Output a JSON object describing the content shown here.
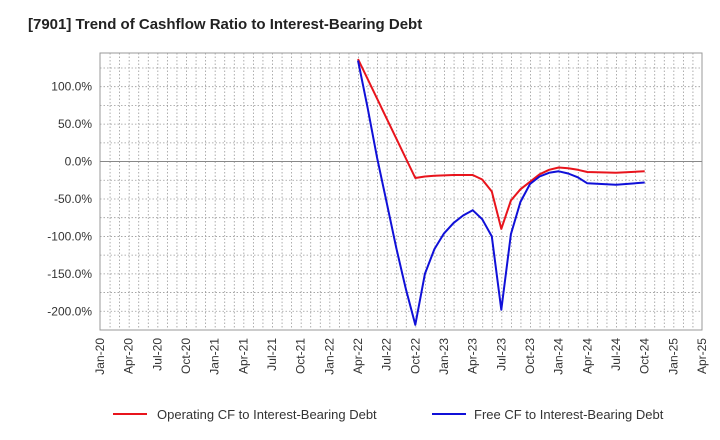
{
  "title": "[7901]  Trend of Cashflow Ratio to Interest-Bearing Debt",
  "chart_data": {
    "type": "line",
    "title": "[7901]  Trend of Cashflow Ratio to Interest-Bearing Debt",
    "xlabel": "",
    "ylabel": "",
    "x_tick_labels": [
      "Jan-20",
      "Apr-20",
      "Jul-20",
      "Oct-20",
      "Jan-21",
      "Apr-21",
      "Jul-21",
      "Oct-21",
      "Jan-22",
      "Apr-22",
      "Jul-22",
      "Oct-22",
      "Jan-23",
      "Apr-23",
      "Jul-23",
      "Oct-23",
      "Jan-24",
      "Apr-24",
      "Jul-24",
      "Oct-24",
      "Jan-25",
      "Apr-25"
    ],
    "xlim": [
      "2020-01",
      "2025-04"
    ],
    "y_tick_values": [
      100,
      50,
      0,
      -50,
      -100,
      -150,
      -200
    ],
    "y_tick_labels": [
      "100.0%",
      "50.0%",
      "0.0%",
      "-50.0%",
      "-100.0%",
      "-150.0%",
      "-200.0%"
    ],
    "ylim": [
      -225,
      145
    ],
    "grid": true,
    "legend_position": "bottom",
    "series": [
      {
        "name": "Operating CF to Interest-Bearing Debt",
        "color": "#e8141c",
        "points": [
          [
            "2022-04",
            137
          ],
          [
            "2022-10",
            -22
          ],
          [
            "2022-11",
            -20
          ],
          [
            "2022-12",
            -19
          ],
          [
            "2023-01",
            -18.5
          ],
          [
            "2023-02",
            -18
          ],
          [
            "2023-03",
            -18
          ],
          [
            "2023-04",
            -18
          ],
          [
            "2023-05",
            -24
          ],
          [
            "2023-06",
            -40
          ],
          [
            "2023-07",
            -90
          ],
          [
            "2023-08",
            -52
          ],
          [
            "2023-09",
            -37
          ],
          [
            "2023-10",
            -27
          ],
          [
            "2023-11",
            -17
          ],
          [
            "2023-12",
            -11
          ],
          [
            "2024-01",
            -8
          ],
          [
            "2024-02",
            -9
          ],
          [
            "2024-03",
            -11
          ],
          [
            "2024-04",
            -14
          ],
          [
            "2024-07",
            -15
          ],
          [
            "2024-10",
            -13
          ]
        ]
      },
      {
        "name": "Free CF to Interest-Bearing Debt",
        "color": "#1010d8",
        "points": [
          [
            "2022-04",
            135
          ],
          [
            "2022-05",
            72
          ],
          [
            "2022-06",
            5
          ],
          [
            "2022-07",
            -55
          ],
          [
            "2022-08",
            -115
          ],
          [
            "2022-09",
            -170
          ],
          [
            "2022-10",
            -218
          ],
          [
            "2022-11",
            -150
          ],
          [
            "2022-12",
            -117
          ],
          [
            "2023-01",
            -96
          ],
          [
            "2023-02",
            -82
          ],
          [
            "2023-03",
            -72
          ],
          [
            "2023-04",
            -65
          ],
          [
            "2023-05",
            -77
          ],
          [
            "2023-06",
            -100
          ],
          [
            "2023-07",
            -198
          ],
          [
            "2023-08",
            -97
          ],
          [
            "2023-09",
            -54
          ],
          [
            "2023-10",
            -30
          ],
          [
            "2023-11",
            -20
          ],
          [
            "2023-12",
            -15
          ],
          [
            "2024-01",
            -13
          ],
          [
            "2024-02",
            -16
          ],
          [
            "2024-03",
            -21
          ],
          [
            "2024-04",
            -29
          ],
          [
            "2024-07",
            -31
          ],
          [
            "2024-10",
            -28
          ]
        ]
      }
    ]
  }
}
